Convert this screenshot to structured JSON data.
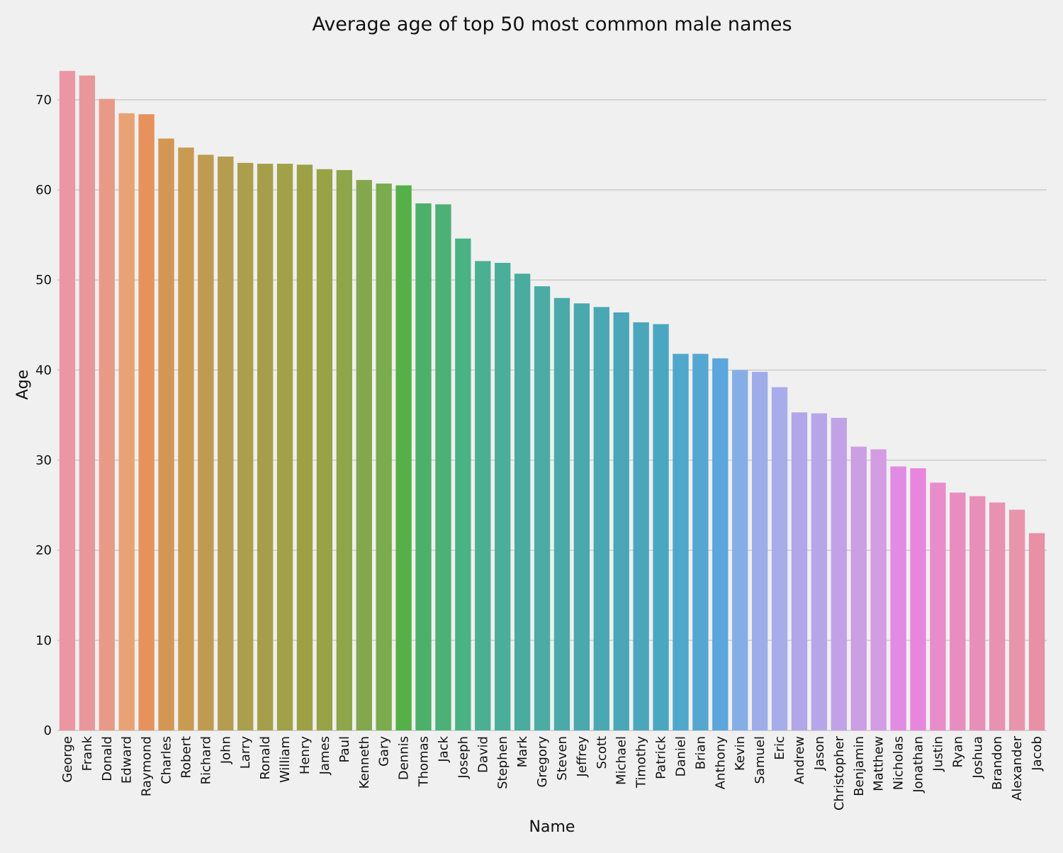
{
  "chart_data": {
    "type": "bar",
    "title": "Average age of top 50 most common male names",
    "xlabel": "Name",
    "ylabel": "Age",
    "ylim": [
      0,
      74
    ],
    "yticks": [
      0,
      10,
      20,
      30,
      40,
      50,
      60,
      70
    ],
    "grid": "horizontal",
    "background": "#f0f0f0",
    "categories": [
      "George",
      "Frank",
      "Donald",
      "Edward",
      "Raymond",
      "Charles",
      "Robert",
      "Richard",
      "John",
      "Larry",
      "Ronald",
      "William",
      "Henry",
      "James",
      "Paul",
      "Kenneth",
      "Gary",
      "Dennis",
      "Thomas",
      "Jack",
      "Joseph",
      "David",
      "Stephen",
      "Mark",
      "Gregory",
      "Steven",
      "Jeffrey",
      "Scott",
      "Michael",
      "Timothy",
      "Patrick",
      "Daniel",
      "Brian",
      "Anthony",
      "Kevin",
      "Samuel",
      "Eric",
      "Andrew",
      "Jason",
      "Christopher",
      "Benjamin",
      "Matthew",
      "Nicholas",
      "Jonathan",
      "Justin",
      "Ryan",
      "Joshua",
      "Brandon",
      "Alexander",
      "Jacob"
    ],
    "values": [
      73.2,
      72.7,
      70.1,
      68.5,
      68.4,
      65.7,
      64.7,
      63.9,
      63.7,
      63.0,
      62.9,
      62.9,
      62.8,
      62.3,
      62.2,
      61.1,
      60.7,
      60.5,
      58.5,
      58.4,
      54.6,
      52.1,
      51.9,
      50.7,
      49.3,
      48.0,
      47.4,
      47.0,
      46.4,
      45.3,
      45.1,
      41.8,
      41.8,
      41.3,
      40.0,
      39.8,
      38.1,
      35.3,
      35.2,
      34.7,
      31.5,
      31.2,
      29.3,
      29.1,
      27.5,
      26.4,
      26.0,
      25.3,
      24.5,
      21.9
    ],
    "colors": [
      "#ea96a3",
      "#e9979a",
      "#e89a87",
      "#e8a273",
      "#e7925d",
      "#d49653",
      "#c99a52",
      "#bf9b50",
      "#b59c4f",
      "#ab9e4c",
      "#a59f4a",
      "#a1a148",
      "#9da146",
      "#98a345",
      "#8ea64a",
      "#84a74d",
      "#7aab4c",
      "#55b147",
      "#4cb06a",
      "#4cb077",
      "#4ab283",
      "#4ab091",
      "#4aae9b",
      "#4aac9e",
      "#4aaca5",
      "#4aaaa9",
      "#4aa9ae",
      "#4aa8b2",
      "#4aa7b7",
      "#4aa7bb",
      "#4aa7c1",
      "#4fa7cb",
      "#54a7d1",
      "#5aa6dd",
      "#86aee6",
      "#9eace8",
      "#a7aceb",
      "#b0a6e8",
      "#b7a5e9",
      "#c1a2e6",
      "#cc9ee3",
      "#d49ce3",
      "#e28be3",
      "#e786dc",
      "#e88ccb",
      "#e88dc0",
      "#e88fb8",
      "#e891b1",
      "#e895ab",
      "#e890a6"
    ]
  }
}
